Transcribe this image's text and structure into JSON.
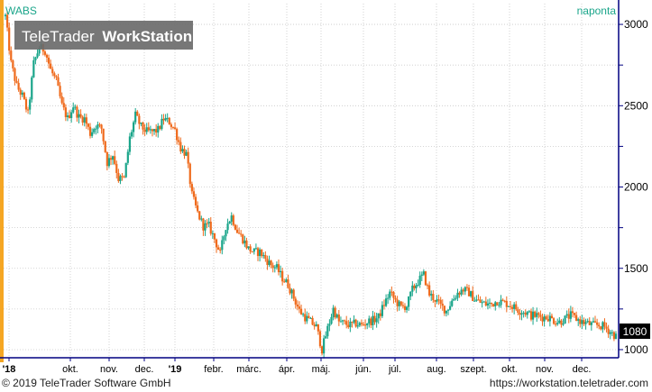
{
  "header": {
    "symbol": "WABS",
    "period": "naponta",
    "watermark_brand": "TeleTrader",
    "watermark_product": "WorkStation"
  },
  "footer": {
    "copyright": "© 2019 TeleTrader Software GmbH",
    "url": "https://workstation.teletrader.com"
  },
  "colors": {
    "up": "#1aa58a",
    "down": "#ef6a1c",
    "grid": "#c9c9c9",
    "accent_left_bar": "#f5a623",
    "axis_frame": "#000080",
    "last_price_bg": "#000000",
    "last_price_fg": "#ffffff",
    "period_label": "#1aa58a",
    "watermark_bg": "#6b6b6b",
    "watermark_fg": "#ffffff"
  },
  "chart_data": {
    "type": "candlestick",
    "y_ticks": [
      "3000",
      "2500",
      "2000",
      "1500",
      "1000"
    ],
    "ylim": [
      950,
      3150
    ],
    "grid": true,
    "x_tick_labels": [
      "'18",
      "okt.",
      "nov.",
      "dec.",
      "'19",
      "febr.",
      "márc.",
      "ápr.",
      "máj.",
      "jún.",
      "júl.",
      "aug.",
      "szept.",
      "okt.",
      "nov.",
      "dec."
    ],
    "last_price_label": "1080",
    "trajectory": {
      "x": [
        0,
        3,
        6,
        9,
        12,
        15,
        18,
        21,
        24,
        27,
        30,
        33,
        36,
        39,
        42,
        45,
        48,
        51,
        54,
        57,
        60,
        63,
        66,
        69,
        72,
        75,
        78,
        81,
        84,
        87,
        90,
        93,
        96,
        99,
        102,
        105,
        108,
        111,
        114,
        117,
        120,
        123,
        126,
        129,
        132,
        135,
        138,
        141,
        144,
        147,
        150,
        153,
        156,
        159,
        162,
        165,
        168,
        171,
        174,
        177,
        180,
        183,
        186,
        189,
        192,
        195,
        198,
        201,
        204,
        207,
        210,
        213,
        216,
        219,
        222,
        225,
        228,
        231,
        234,
        237,
        240,
        243,
        246,
        249,
        252,
        255,
        258,
        261,
        264,
        267,
        270,
        273,
        276,
        279,
        282,
        285,
        288,
        291,
        294,
        297,
        300,
        303,
        306,
        309,
        312,
        315,
        318,
        321,
        324
      ],
      "close": [
        3050,
        2760,
        2620,
        2560,
        2450,
        2760,
        2860,
        2840,
        2720,
        2650,
        2500,
        2420,
        2500,
        2430,
        2420,
        2330,
        2380,
        2360,
        2150,
        2200,
        2050,
        2050,
        2300,
        2440,
        2370,
        2340,
        2340,
        2350,
        2420,
        2400,
        2350,
        2240,
        2200,
        1950,
        1840,
        1760,
        1760,
        1680,
        1590,
        1760,
        1820,
        1730,
        1680,
        1620,
        1600,
        1600,
        1560,
        1520,
        1500,
        1440,
        1400,
        1320,
        1240,
        1200,
        1170,
        1140,
        1000,
        1130,
        1250,
        1170,
        1160,
        1150,
        1160,
        1150,
        1170,
        1180,
        1200,
        1280,
        1350,
        1300,
        1260,
        1270,
        1370,
        1420,
        1460,
        1340,
        1310,
        1270,
        1240,
        1300,
        1350,
        1370,
        1350,
        1310,
        1290,
        1280,
        1280,
        1300,
        1290,
        1280,
        1260,
        1240,
        1230,
        1210,
        1210,
        1200,
        1200,
        1180,
        1170,
        1190,
        1210,
        1190,
        1170,
        1160,
        1150,
        1150,
        1140,
        1110,
        1080
      ]
    }
  }
}
